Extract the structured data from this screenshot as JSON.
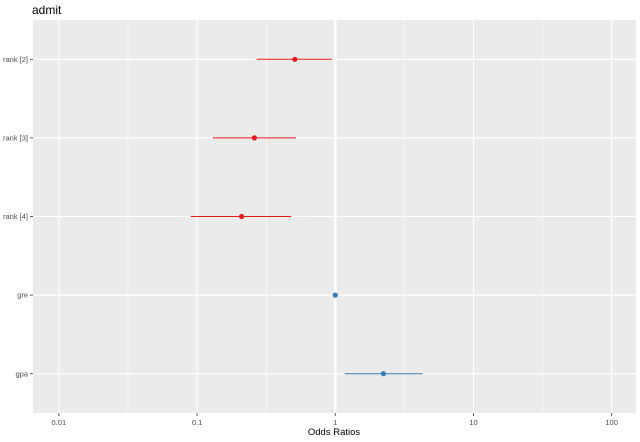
{
  "chart_data": {
    "type": "scatter",
    "title": "admit",
    "xlabel": "Odds Ratios",
    "ylabel": "",
    "x_scale": "log10",
    "xlim": [
      0.0065,
      150
    ],
    "x_ticks": [
      0.01,
      0.1,
      1,
      10,
      100
    ],
    "x_tick_labels": [
      "0.01",
      "0.1",
      "1",
      "10",
      "100"
    ],
    "reference_line": 1,
    "grid": true,
    "legend": "none",
    "categories": [
      "rank [2]",
      "rank [3]",
      "rank [4]",
      "gre",
      "gpa"
    ],
    "estimates": [
      {
        "term": "rank [2]",
        "estimate": 0.51,
        "conf_low": 0.27,
        "conf_high": 0.95,
        "color": "#e41a1c"
      },
      {
        "term": "rank [3]",
        "estimate": 0.26,
        "conf_low": 0.13,
        "conf_high": 0.52,
        "color": "#e41a1c"
      },
      {
        "term": "rank [4]",
        "estimate": 0.21,
        "conf_low": 0.09,
        "conf_high": 0.48,
        "color": "#e41a1c"
      },
      {
        "term": "gre",
        "estimate": 1.0,
        "conf_low": 1.0,
        "conf_high": 1.0,
        "color": "#377eb8"
      },
      {
        "term": "gpa",
        "estimate": 2.23,
        "conf_low": 1.17,
        "conf_high": 4.3,
        "color": "#377eb8"
      }
    ]
  }
}
